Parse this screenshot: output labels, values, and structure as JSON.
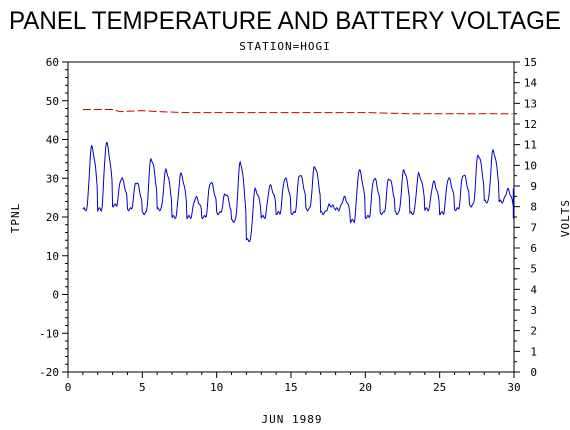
{
  "chart_data": {
    "type": "line",
    "title": "PANEL TEMPERATURE AND BATTERY VOLTAGE",
    "subtitle": "STATION=HOGI",
    "xlabel": "JUN 1989",
    "ylabel_left": "TPNL",
    "ylabel_right": "VOLTS",
    "xlim": [
      0,
      30
    ],
    "ylim_left": [
      -20,
      60
    ],
    "ylim_right": [
      0,
      15
    ],
    "x_ticks": [
      "0",
      "5",
      "10",
      "15",
      "20",
      "25",
      "30"
    ],
    "y_left_ticks": [
      "-20",
      "-10",
      "0",
      "10",
      "20",
      "30",
      "40",
      "50",
      "60"
    ],
    "y_right_ticks": [
      "0",
      "1",
      "2",
      "3",
      "4",
      "5",
      "6",
      "7",
      "8",
      "9",
      "10",
      "11",
      "12",
      "13",
      "14",
      "15"
    ],
    "series": [
      {
        "axis": "left",
        "color": "#0000cc",
        "style": "solid",
        "daily_min": [
          22,
          22,
          23,
          22,
          21,
          22,
          20,
          20,
          20,
          21,
          19,
          14,
          20,
          21,
          21,
          22,
          21,
          22,
          19,
          20,
          21,
          21,
          21,
          22,
          21,
          22,
          23,
          24,
          24,
          20
        ],
        "daily_max": [
          38,
          39,
          30,
          29,
          35,
          32,
          31,
          25,
          29,
          26,
          34,
          27,
          28,
          30,
          31,
          33,
          23,
          25,
          32,
          30,
          30,
          32,
          31,
          29,
          30,
          31,
          36,
          37,
          27,
          27
        ]
      },
      {
        "axis": "right",
        "color": "#cc0000",
        "style": "dashed",
        "x": [
          1,
          3,
          3.5,
          5,
          6,
          8,
          10,
          12,
          15,
          20,
          23,
          25,
          28,
          29.9
        ],
        "y": [
          12.7,
          12.7,
          12.6,
          12.65,
          12.6,
          12.55,
          12.55,
          12.55,
          12.55,
          12.55,
          12.5,
          12.5,
          12.5,
          12.5
        ]
      }
    ]
  }
}
